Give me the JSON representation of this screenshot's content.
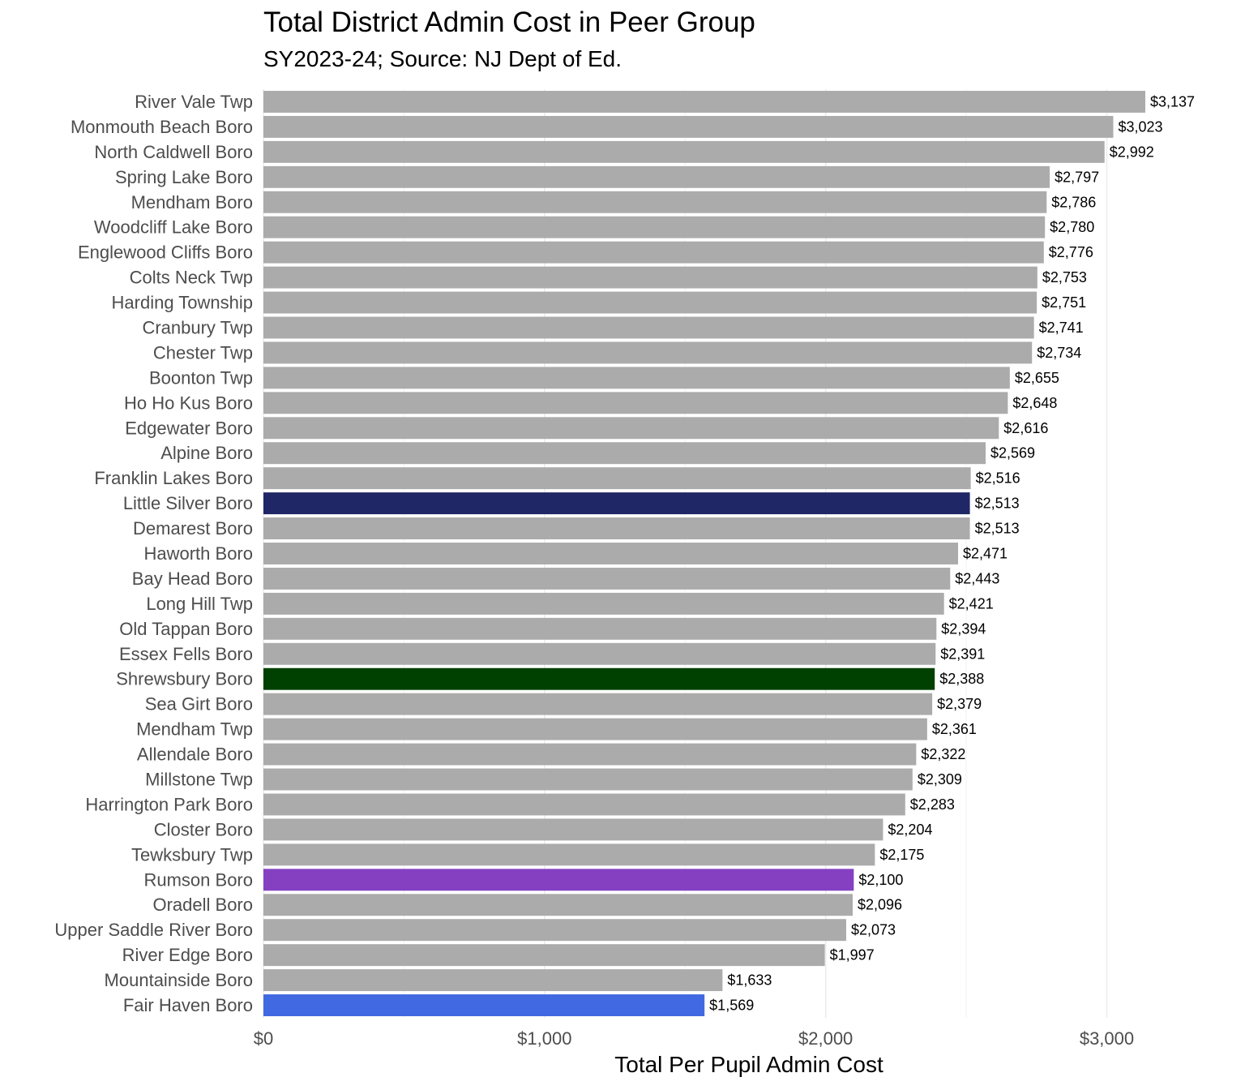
{
  "chart_data": {
    "type": "bar",
    "orientation": "horizontal",
    "title": "Total District Admin Cost in Peer Group",
    "subtitle": "SY2023-24; Source: NJ Dept of Ed.",
    "xlabel": "Total Per Pupil Admin Cost",
    "ylabel": "",
    "xlim": [
      0,
      3137
    ],
    "x_ticks": [
      0,
      1000,
      2000,
      3000
    ],
    "x_tick_labels": [
      "$0",
      "$1,000",
      "$2,000",
      "$3,000"
    ],
    "grid": true,
    "legend": "none",
    "default_color": "#ababab",
    "categories": [
      "River Vale Twp",
      "Monmouth Beach Boro",
      "North Caldwell Boro",
      "Spring Lake Boro",
      "Mendham Boro",
      "Woodcliff Lake Boro",
      "Englewood Cliffs Boro",
      "Colts Neck Twp",
      "Harding Township",
      "Cranbury Twp",
      "Chester Twp",
      "Boonton Twp",
      "Ho Ho Kus Boro",
      "Edgewater Boro",
      "Alpine Boro",
      "Franklin Lakes Boro",
      "Little Silver Boro",
      "Demarest Boro",
      "Haworth Boro",
      "Bay Head Boro",
      "Long Hill Twp",
      "Old Tappan Boro",
      "Essex Fells Boro",
      "Shrewsbury Boro",
      "Sea Girt Boro",
      "Mendham Twp",
      "Allendale Boro",
      "Millstone Twp",
      "Harrington Park Boro",
      "Closter Boro",
      "Tewksbury Twp",
      "Rumson Boro",
      "Oradell Boro",
      "Upper Saddle River Boro",
      "River Edge Boro",
      "Mountainside Boro",
      "Fair Haven Boro"
    ],
    "values": [
      3137,
      3023,
      2992,
      2797,
      2786,
      2780,
      2776,
      2753,
      2751,
      2741,
      2734,
      2655,
      2648,
      2616,
      2569,
      2516,
      2513,
      2513,
      2471,
      2443,
      2421,
      2394,
      2391,
      2388,
      2379,
      2361,
      2322,
      2309,
      2283,
      2204,
      2175,
      2100,
      2096,
      2073,
      1997,
      1633,
      1569
    ],
    "value_labels": [
      "$3,137",
      "$3,023",
      "$2,992",
      "$2,797",
      "$2,786",
      "$2,780",
      "$2,776",
      "$2,753",
      "$2,751",
      "$2,741",
      "$2,734",
      "$2,655",
      "$2,648",
      "$2,616",
      "$2,569",
      "$2,516",
      "$2,513",
      "$2,513",
      "$2,471",
      "$2,443",
      "$2,421",
      "$2,394",
      "$2,391",
      "$2,388",
      "$2,379",
      "$2,361",
      "$2,322",
      "$2,309",
      "$2,283",
      "$2,204",
      "$2,175",
      "$2,100",
      "$2,096",
      "$2,073",
      "$1,997",
      "$1,633",
      "$1,569"
    ],
    "highlights": {
      "Little Silver Boro": "#1f2766",
      "Shrewsbury Boro": "#004000",
      "Rumson Boro": "#8540c2",
      "Fair Haven Boro": "#4169e1"
    }
  }
}
